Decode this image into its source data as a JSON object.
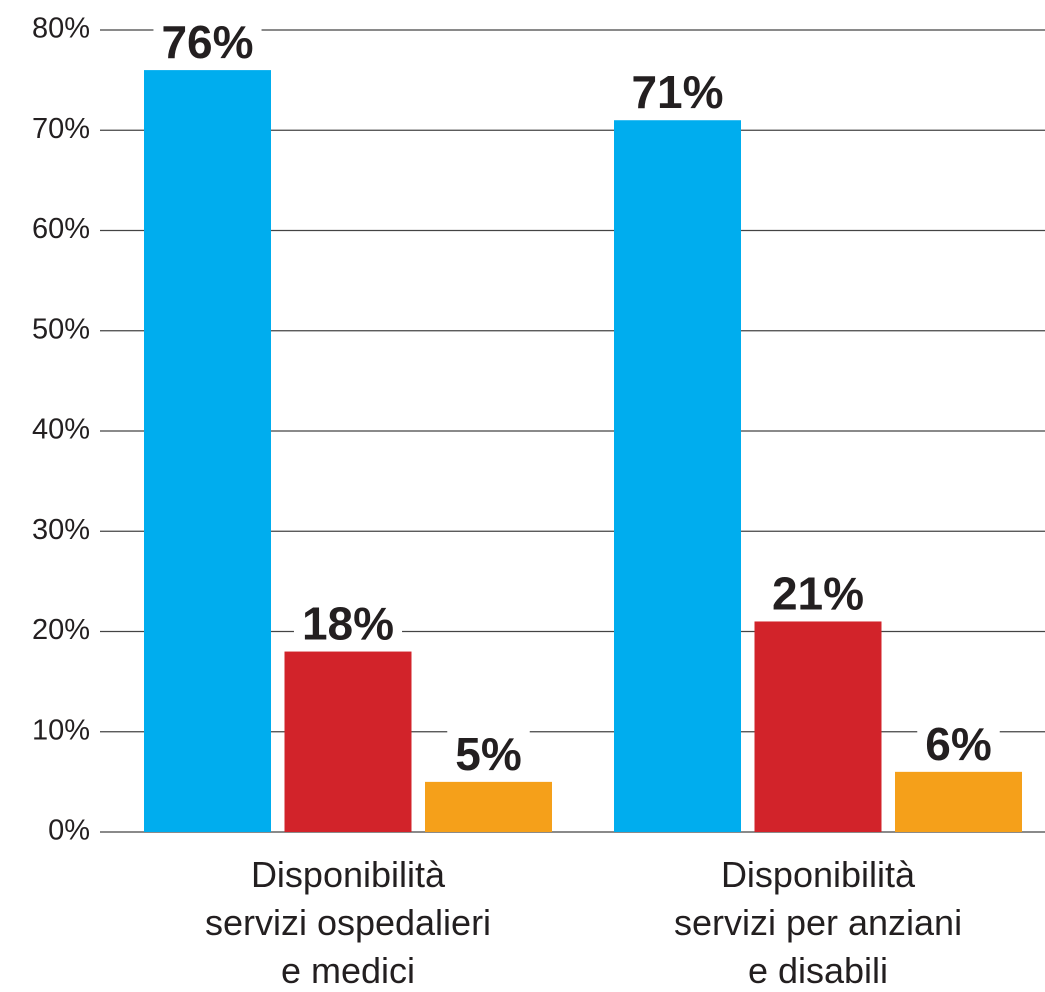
{
  "chart_data": {
    "type": "bar",
    "categories": [
      [
        "Disponibilità",
        "servizi ospedalieri",
        "e medici"
      ],
      [
        "Disponibilità",
        "servizi per anziani",
        "e disabili"
      ]
    ],
    "series": [
      {
        "color": "#00adee",
        "values": [
          76,
          71
        ],
        "value_labels": [
          "76%",
          "71%"
        ]
      },
      {
        "color": "#d2232a",
        "values": [
          18,
          21
        ],
        "value_labels": [
          "18%",
          "21%"
        ]
      },
      {
        "color": "#f5a01a",
        "values": [
          5,
          6
        ],
        "value_labels": [
          "5%",
          "6%"
        ]
      }
    ],
    "ylim": [
      0,
      80
    ],
    "yticks": [
      {
        "value": 0,
        "label": "0%"
      },
      {
        "value": 10,
        "label": "10%"
      },
      {
        "value": 20,
        "label": "20%"
      },
      {
        "value": 30,
        "label": "30%"
      },
      {
        "value": 40,
        "label": "40%"
      },
      {
        "value": 50,
        "label": "50%"
      },
      {
        "value": 60,
        "label": "60%"
      },
      {
        "value": 70,
        "label": "70%"
      },
      {
        "value": 80,
        "label": "80%"
      }
    ],
    "grid": true
  }
}
